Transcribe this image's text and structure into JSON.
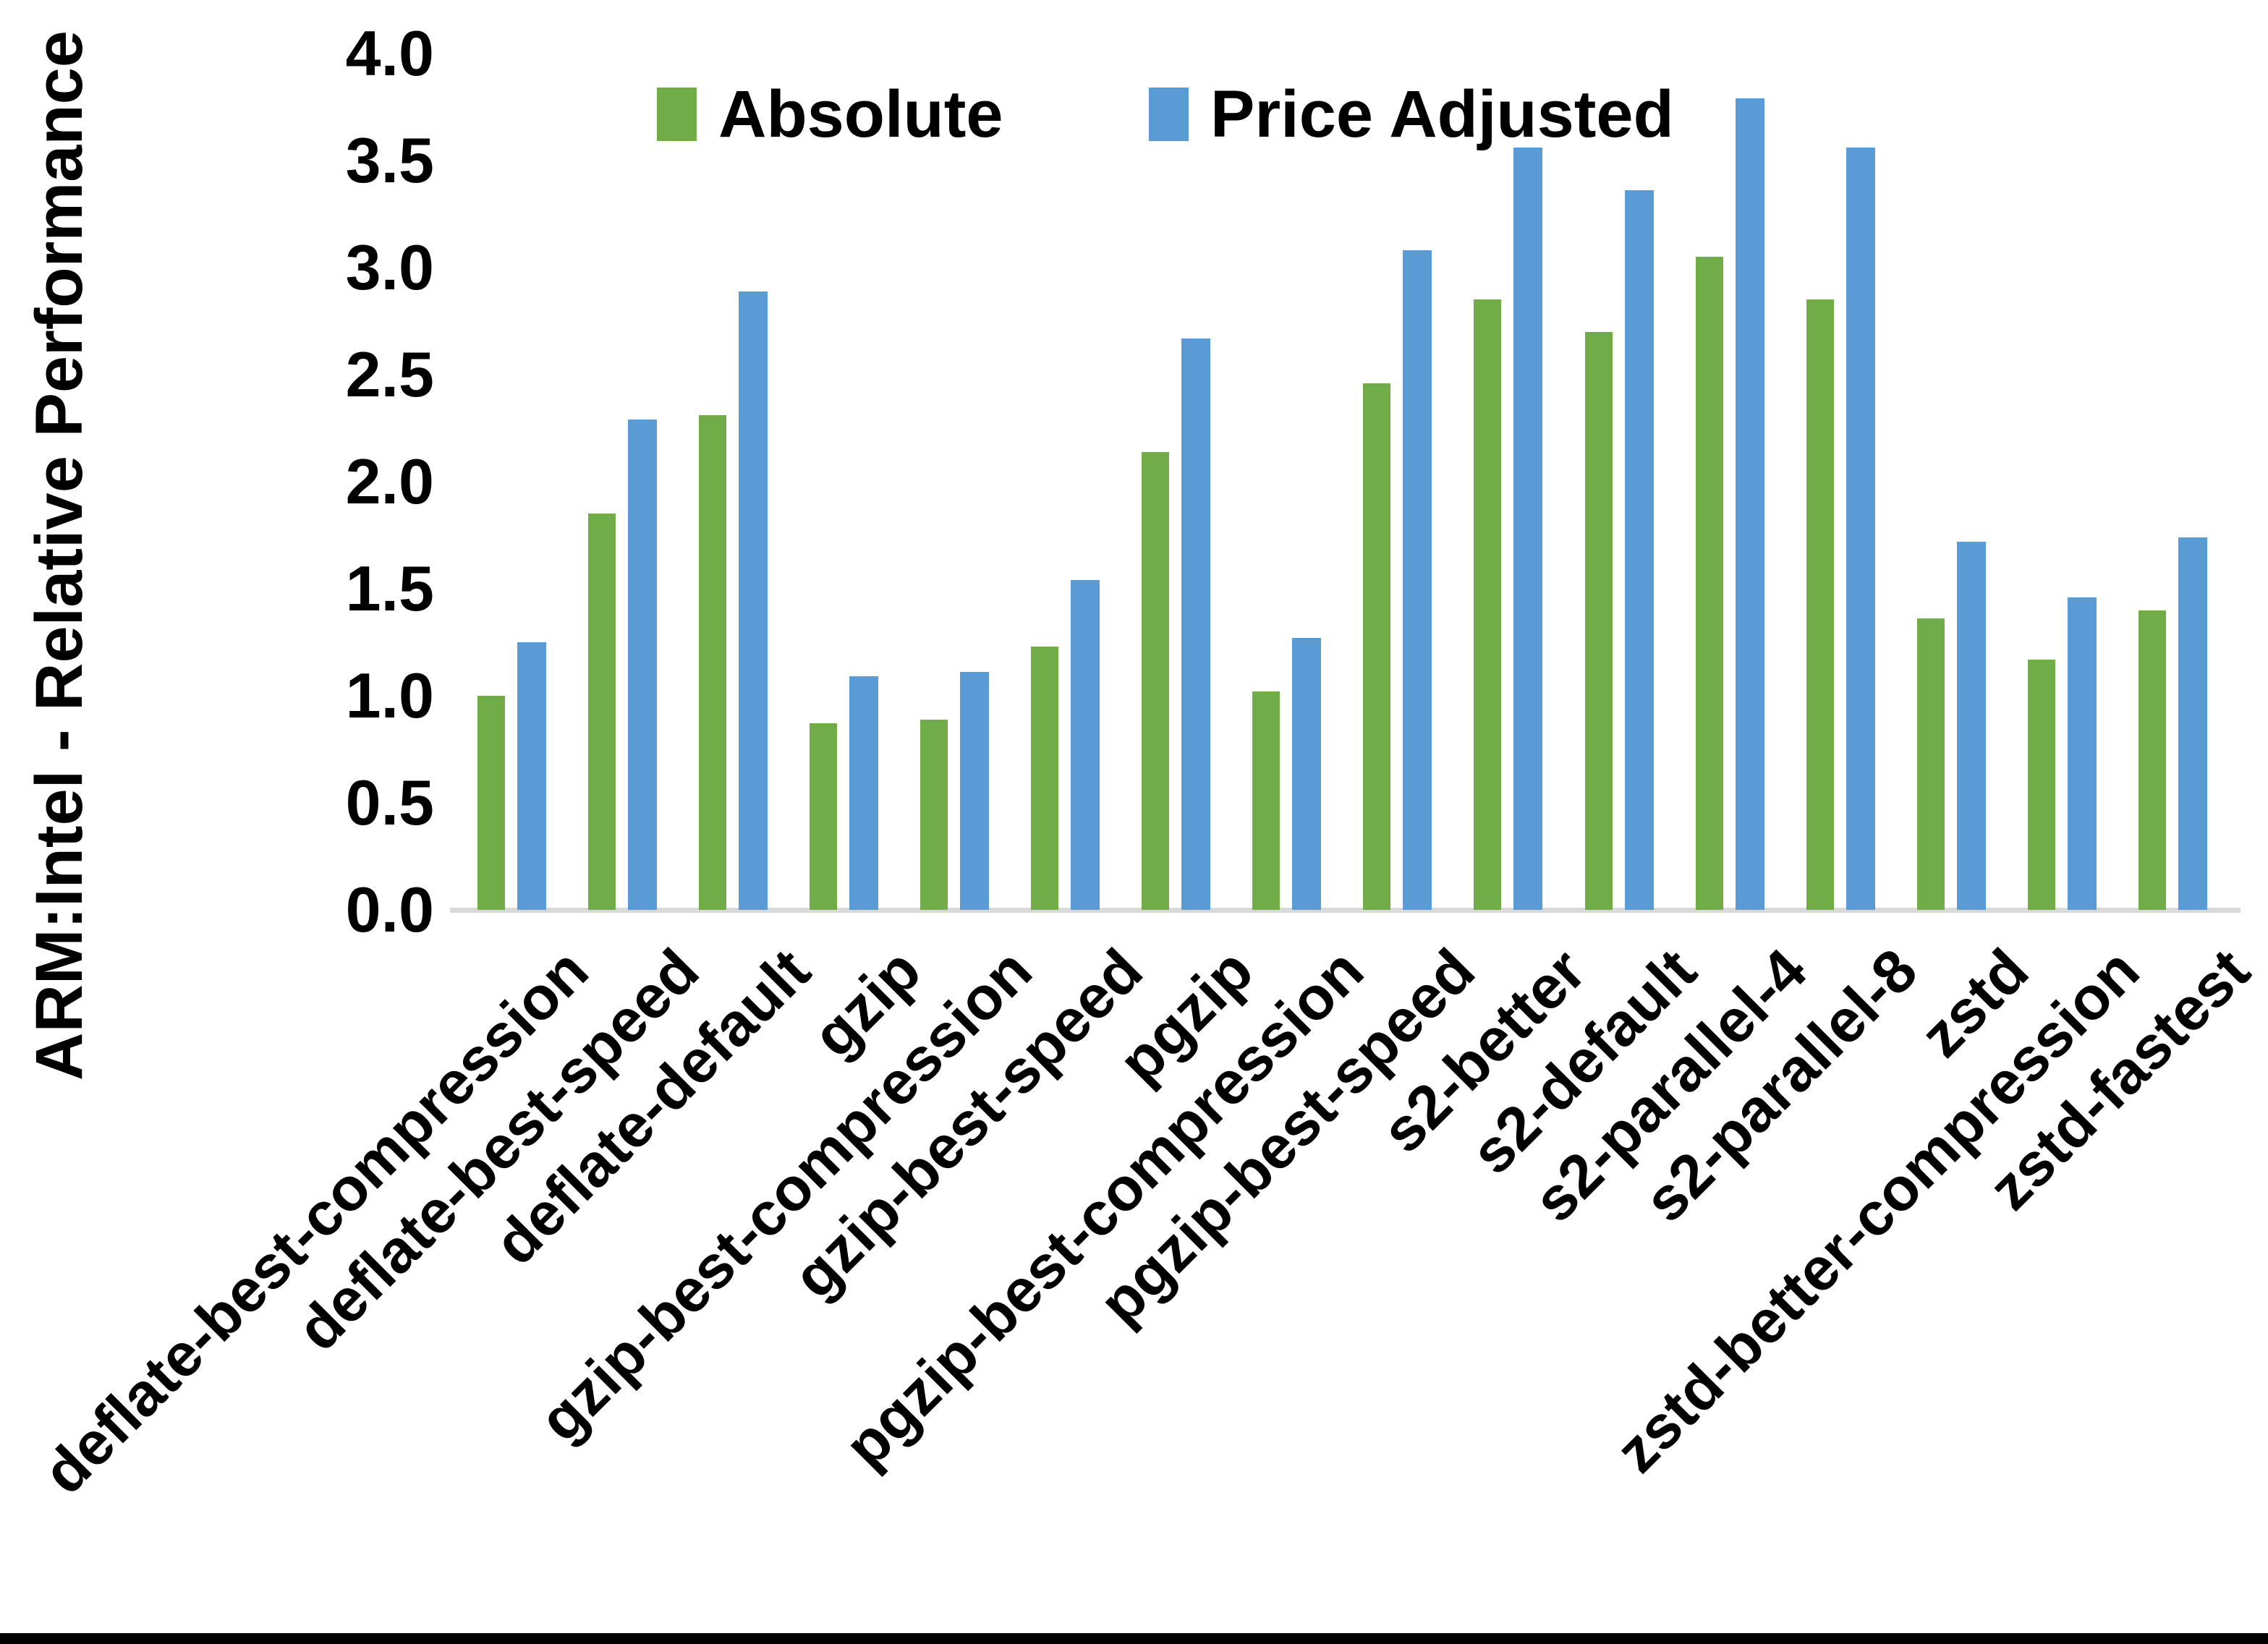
{
  "figure": {
    "y_axis_title": "ARM:Intel - Relative Performance",
    "background_color": "#FFFFFF",
    "text_color": "#000000",
    "axis_line_color": "#D9D9D9",
    "bottom_border_color": "#000000"
  },
  "legend": {
    "items": [
      {
        "label": "Absolute",
        "color": "#70AD47"
      },
      {
        "label": "Price Adjusted",
        "color": "#5B9BD5"
      }
    ]
  },
  "chart_data": {
    "type": "bar",
    "title": "",
    "xlabel": "",
    "ylabel": "ARM:Intel - Relative Performance",
    "ylim": [
      0.0,
      4.0
    ],
    "ytick_step": 0.5,
    "ytick_labels": [
      "0.0",
      "0.5",
      "1.0",
      "1.5",
      "2.0",
      "2.5",
      "3.0",
      "3.5",
      "4.0"
    ],
    "grid": false,
    "legend_position": "top-center",
    "categories": [
      "deflate-best-compression",
      "deflate-best-speed",
      "deflate-default",
      "gzip",
      "gzip-best-compression",
      "gzip-best-speed",
      "pgzip",
      "pgzip-best-compression",
      "pgzip-best-speed",
      "s2-better",
      "s2-default",
      "s2-parallel-4",
      "s2-parallel-8",
      "zstd",
      "zstd-better-compression",
      "zstd-fastest"
    ],
    "series": [
      {
        "name": "Absolute",
        "color": "#70AD47",
        "values": [
          1.0,
          1.85,
          2.31,
          0.87,
          0.89,
          1.23,
          2.14,
          1.02,
          2.46,
          2.85,
          2.7,
          3.05,
          2.85,
          1.36,
          1.17,
          1.4
        ]
      },
      {
        "name": "Price Adjusted",
        "color": "#5B9BD5",
        "values": [
          1.25,
          2.29,
          2.89,
          1.09,
          1.11,
          1.54,
          2.67,
          1.27,
          3.08,
          3.56,
          3.36,
          3.79,
          3.56,
          1.72,
          1.46,
          1.74
        ]
      }
    ]
  }
}
